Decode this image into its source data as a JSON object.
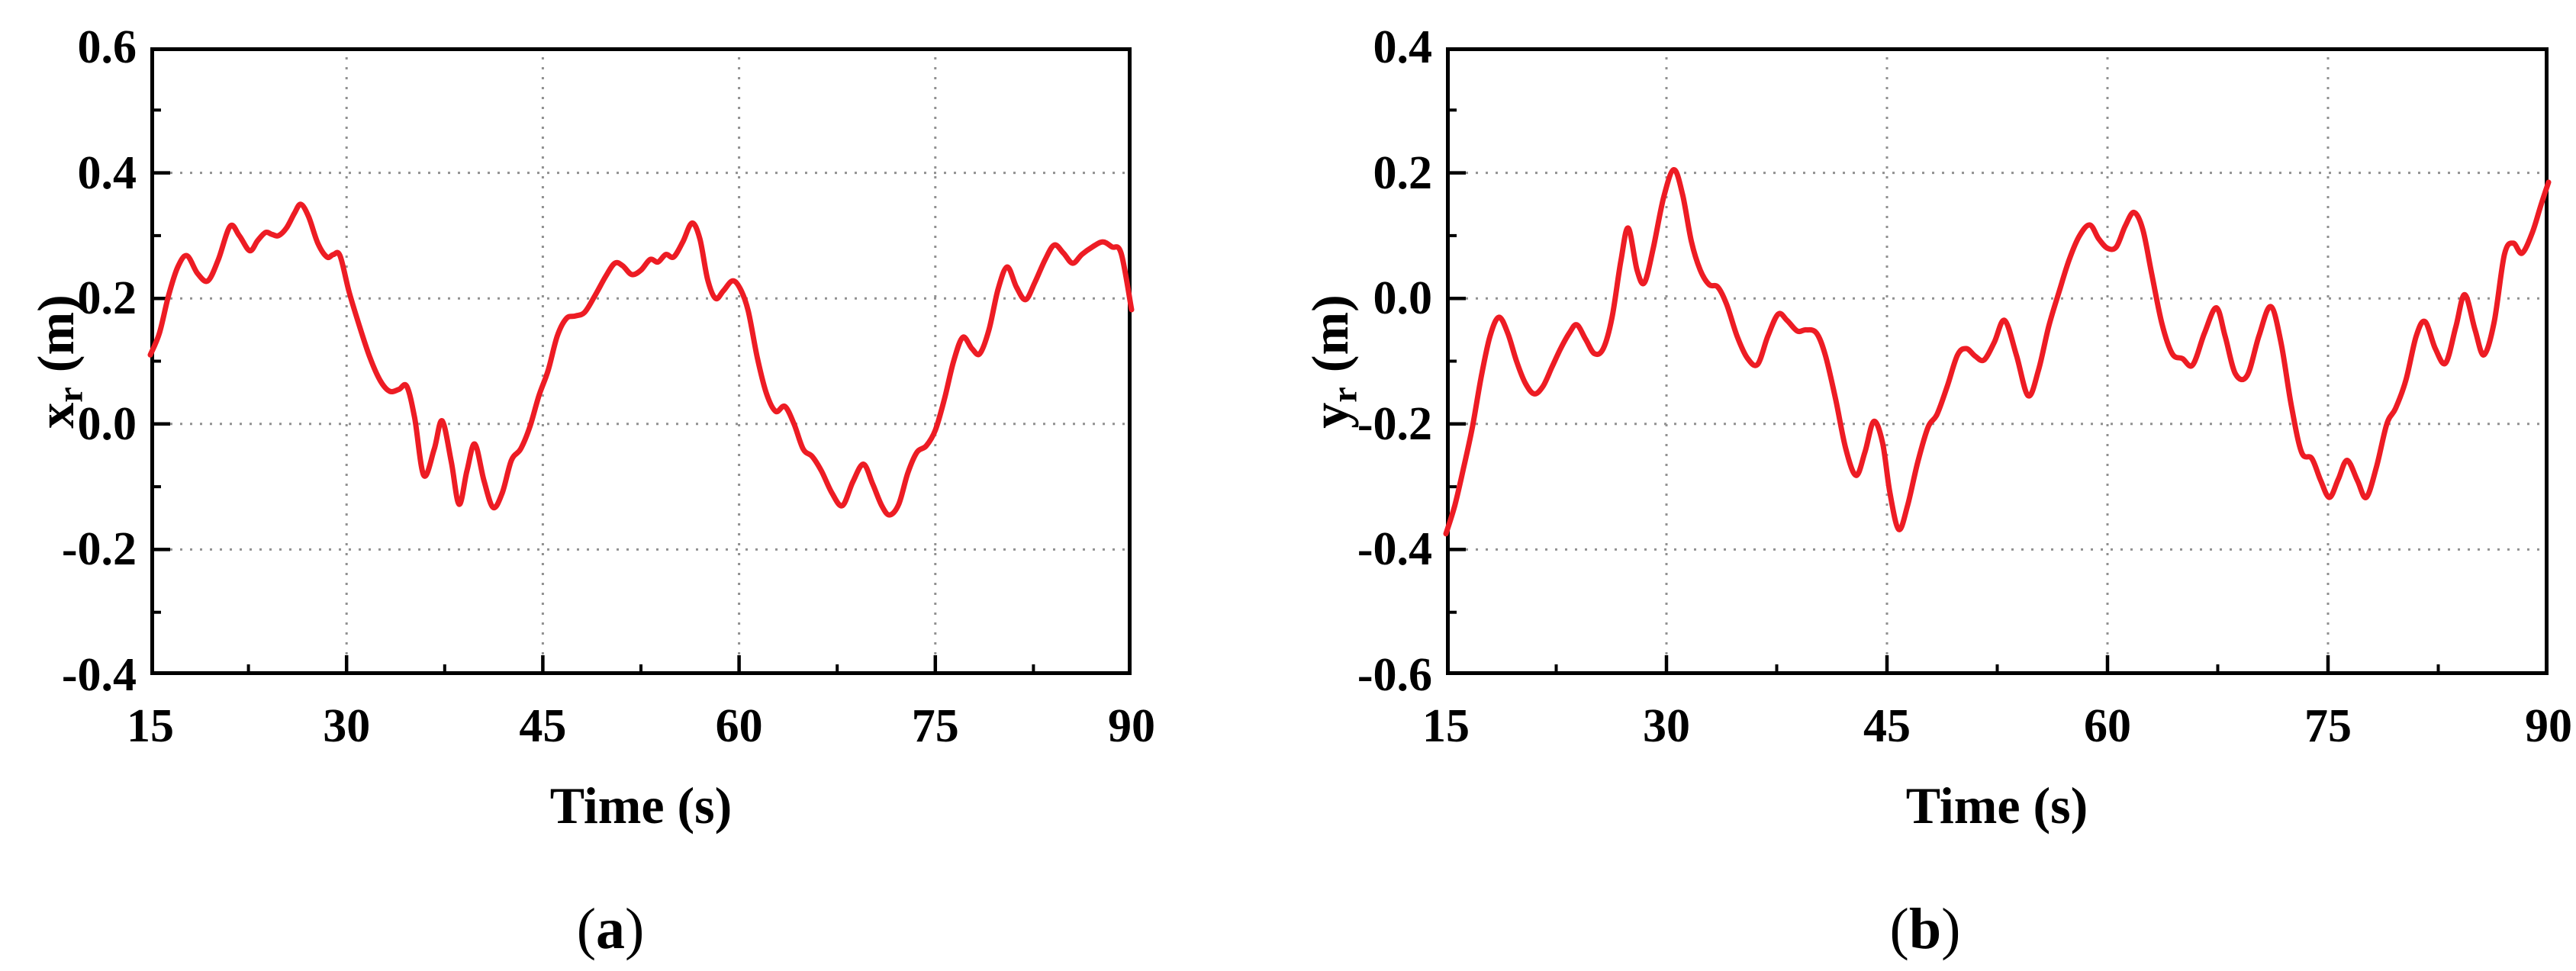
{
  "figure": {
    "background": "#ffffff",
    "line_color": "#ED1C24",
    "grid_color": "#909090",
    "axis_color": "#000000"
  },
  "chart_data": [
    {
      "type": "line",
      "panel": "a",
      "caption_open": "(",
      "caption_letter": "a",
      "caption_close": ")",
      "xlabel": "Time (s)",
      "ylabel_var": "x",
      "ylabel_sub": "r",
      "ylabel_unit": "(m)",
      "xlim": [
        15,
        90
      ],
      "ylim": [
        -0.4,
        0.6
      ],
      "x_tick_values": [
        15,
        30,
        45,
        60,
        75,
        90
      ],
      "x_tick_labels": [
        "15",
        "30",
        "45",
        "60",
        "75",
        "90"
      ],
      "y_tick_values": [
        0.6,
        0.4,
        0.2,
        0.0,
        -0.2,
        -0.4
      ],
      "y_tick_labels": [
        "0.6",
        "0.4",
        "0.2",
        "0.0",
        "-0.2",
        "-0.4"
      ],
      "grid": "dotted-major",
      "legend": "none",
      "series": [
        {
          "name": "x_r",
          "color": "#ED1C24",
          "x": [
            15.0,
            15.7,
            16.4,
            17.1,
            17.8,
            18.6,
            19.4,
            20.2,
            21.1,
            21.8,
            22.6,
            23.2,
            23.8,
            24.3,
            24.8,
            25.4,
            26.0,
            26.5,
            27.1,
            27.8,
            28.5,
            29.0,
            29.5,
            30.2,
            31.0,
            31.8,
            32.6,
            33.3,
            34.0,
            34.6,
            35.2,
            35.9,
            36.7,
            37.3,
            38.0,
            38.6,
            39.2,
            39.8,
            40.5,
            41.2,
            41.9,
            42.6,
            43.3,
            44.0,
            44.7,
            45.4,
            46.1,
            46.8,
            47.5,
            48.2,
            49.0,
            49.8,
            50.5,
            51.1,
            51.8,
            52.5,
            53.2,
            53.8,
            54.4,
            55.0,
            55.7,
            56.4,
            57.0,
            57.6,
            58.2,
            58.8,
            59.5,
            60.1,
            60.7,
            61.4,
            62.1,
            62.8,
            63.5,
            64.2,
            64.9,
            65.6,
            66.3,
            67.1,
            67.9,
            68.7,
            69.5,
            70.2,
            70.9,
            71.5,
            72.2,
            72.9,
            73.6,
            74.3,
            75.0,
            75.7,
            76.4,
            77.1,
            77.8,
            78.4,
            79.1,
            79.8,
            80.5,
            81.2,
            81.9,
            82.6,
            83.4,
            84.1,
            84.8,
            85.5,
            86.2,
            87.0,
            87.8,
            88.5,
            89.2,
            90.0
          ],
          "y": [
            0.11,
            0.145,
            0.205,
            0.25,
            0.268,
            0.24,
            0.228,
            0.262,
            0.315,
            0.3,
            0.276,
            0.292,
            0.305,
            0.302,
            0.3,
            0.312,
            0.335,
            0.35,
            0.33,
            0.288,
            0.266,
            0.27,
            0.268,
            0.21,
            0.155,
            0.105,
            0.068,
            0.052,
            0.055,
            0.06,
            0.01,
            -0.082,
            -0.04,
            0.005,
            -0.06,
            -0.128,
            -0.075,
            -0.032,
            -0.09,
            -0.133,
            -0.11,
            -0.058,
            -0.04,
            -0.005,
            0.045,
            0.085,
            0.14,
            0.168,
            0.172,
            0.178,
            0.205,
            0.235,
            0.256,
            0.252,
            0.238,
            0.245,
            0.262,
            0.258,
            0.27,
            0.266,
            0.29,
            0.32,
            0.295,
            0.23,
            0.2,
            0.212,
            0.228,
            0.215,
            0.18,
            0.105,
            0.048,
            0.02,
            0.028,
            0.0,
            -0.04,
            -0.052,
            -0.075,
            -0.11,
            -0.13,
            -0.092,
            -0.064,
            -0.095,
            -0.13,
            -0.145,
            -0.128,
            -0.078,
            -0.045,
            -0.035,
            -0.01,
            0.04,
            0.1,
            0.138,
            0.12,
            0.112,
            0.15,
            0.215,
            0.25,
            0.218,
            0.198,
            0.225,
            0.262,
            0.285,
            0.272,
            0.256,
            0.27,
            0.282,
            0.29,
            0.282,
            0.272,
            0.182
          ]
        }
      ]
    },
    {
      "type": "line",
      "panel": "b",
      "caption_open": "(",
      "caption_letter": "b",
      "caption_close": ")",
      "xlabel": "Time (s)",
      "ylabel_var": "y",
      "ylabel_sub": "r",
      "ylabel_unit": "(m)",
      "xlim": [
        15,
        90
      ],
      "ylim": [
        -0.6,
        0.4
      ],
      "x_tick_values": [
        15,
        30,
        45,
        60,
        75,
        90
      ],
      "x_tick_labels": [
        "15",
        "30",
        "45",
        "60",
        "75",
        "90"
      ],
      "y_tick_values": [
        0.4,
        0.2,
        0.0,
        -0.2,
        -0.4,
        -0.6
      ],
      "y_tick_labels": [
        "0.4",
        "0.2",
        "0.0",
        "-0.2",
        "-0.4",
        "-0.6"
      ],
      "grid": "dotted-major",
      "legend": "none",
      "series": [
        {
          "name": "y_r",
          "color": "#ED1C24",
          "x": [
            15.0,
            15.6,
            16.2,
            16.8,
            17.4,
            18.0,
            18.6,
            19.2,
            19.8,
            20.4,
            21.0,
            21.6,
            22.2,
            22.8,
            23.4,
            23.9,
            24.5,
            25.1,
            25.7,
            26.3,
            26.9,
            27.4,
            28.0,
            28.5,
            29.1,
            29.8,
            30.5,
            31.1,
            31.7,
            32.3,
            32.9,
            33.5,
            34.1,
            34.8,
            35.5,
            36.2,
            36.9,
            37.6,
            38.2,
            38.9,
            39.5,
            40.2,
            40.8,
            41.5,
            42.2,
            42.9,
            43.5,
            44.1,
            44.7,
            45.2,
            45.8,
            46.4,
            47.1,
            47.8,
            48.4,
            49.1,
            49.8,
            50.4,
            51.0,
            51.6,
            52.3,
            53.0,
            53.8,
            54.6,
            55.3,
            56.0,
            56.7,
            57.4,
            58.1,
            58.8,
            59.4,
            60.0,
            60.6,
            61.2,
            61.8,
            62.4,
            63.0,
            63.7,
            64.4,
            65.1,
            65.8,
            66.6,
            67.4,
            68.0,
            68.7,
            69.5,
            70.3,
            71.1,
            71.8,
            72.5,
            73.2,
            73.9,
            74.5,
            75.1,
            75.7,
            76.3,
            77.0,
            77.6,
            78.3,
            79.0,
            79.6,
            80.3,
            81.0,
            81.6,
            82.3,
            83.0,
            83.7,
            84.3,
            85.0,
            85.6,
            86.3,
            87.0,
            87.6,
            88.2,
            88.9,
            89.5,
            90.0
          ],
          "y": [
            -0.375,
            -0.33,
            -0.27,
            -0.205,
            -0.125,
            -0.06,
            -0.03,
            -0.055,
            -0.1,
            -0.135,
            -0.152,
            -0.14,
            -0.11,
            -0.08,
            -0.055,
            -0.042,
            -0.065,
            -0.088,
            -0.08,
            -0.03,
            0.06,
            0.112,
            0.045,
            0.025,
            0.08,
            0.16,
            0.205,
            0.165,
            0.09,
            0.045,
            0.022,
            0.018,
            -0.01,
            -0.06,
            -0.095,
            -0.105,
            -0.06,
            -0.025,
            -0.035,
            -0.052,
            -0.05,
            -0.055,
            -0.09,
            -0.16,
            -0.24,
            -0.282,
            -0.245,
            -0.196,
            -0.23,
            -0.31,
            -0.368,
            -0.33,
            -0.26,
            -0.205,
            -0.185,
            -0.14,
            -0.09,
            -0.08,
            -0.092,
            -0.098,
            -0.07,
            -0.035,
            -0.09,
            -0.155,
            -0.115,
            -0.045,
            0.01,
            0.062,
            0.1,
            0.117,
            0.095,
            0.08,
            0.082,
            0.115,
            0.137,
            0.11,
            0.04,
            -0.04,
            -0.088,
            -0.096,
            -0.106,
            -0.055,
            -0.015,
            -0.06,
            -0.12,
            -0.123,
            -0.06,
            -0.013,
            -0.07,
            -0.17,
            -0.245,
            -0.255,
            -0.29,
            -0.317,
            -0.288,
            -0.258,
            -0.29,
            -0.317,
            -0.268,
            -0.2,
            -0.175,
            -0.13,
            -0.06,
            -0.037,
            -0.08,
            -0.103,
            -0.045,
            0.006,
            -0.05,
            -0.09,
            -0.038,
            0.07,
            0.088,
            0.072,
            0.105,
            0.15,
            0.185
          ]
        }
      ]
    }
  ]
}
